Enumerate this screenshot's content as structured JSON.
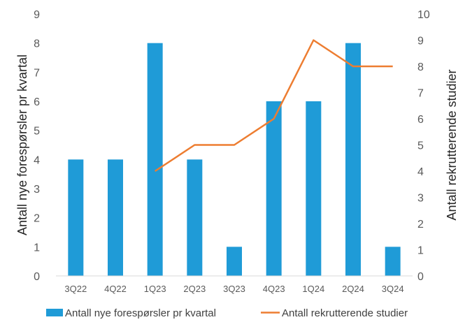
{
  "chart_data": {
    "type": "bar+line",
    "categories": [
      "3Q22",
      "4Q22",
      "1Q23",
      "2Q23",
      "3Q23",
      "4Q23",
      "1Q24",
      "2Q24",
      "3Q24"
    ],
    "series": [
      {
        "name": "Antall nye forespørsler pr kvartal",
        "type": "bar",
        "axis": "left",
        "color": "#1F9BD7",
        "values": [
          4,
          4,
          8,
          4,
          1,
          6,
          6,
          8,
          1
        ]
      },
      {
        "name": "Antall rekrutterende studier",
        "type": "line",
        "axis": "right",
        "color": "#ED7D31",
        "values": [
          null,
          null,
          4,
          5,
          5,
          6,
          9,
          8,
          8
        ]
      }
    ],
    "ylabel_left": "Antall nye forespørsler pr kvartal",
    "ylabel_right": "Antall rekrutterende studier",
    "ylim_left": [
      0,
      9
    ],
    "ylim_right": [
      0,
      10
    ],
    "yticks_left": [
      "0",
      "1",
      "2",
      "3",
      "4",
      "5",
      "6",
      "7",
      "8",
      "9"
    ],
    "yticks_right": [
      "0",
      "1",
      "2",
      "3",
      "4",
      "5",
      "6",
      "7",
      "8",
      "9",
      "10"
    ],
    "grid": false,
    "legend_position": "bottom"
  }
}
